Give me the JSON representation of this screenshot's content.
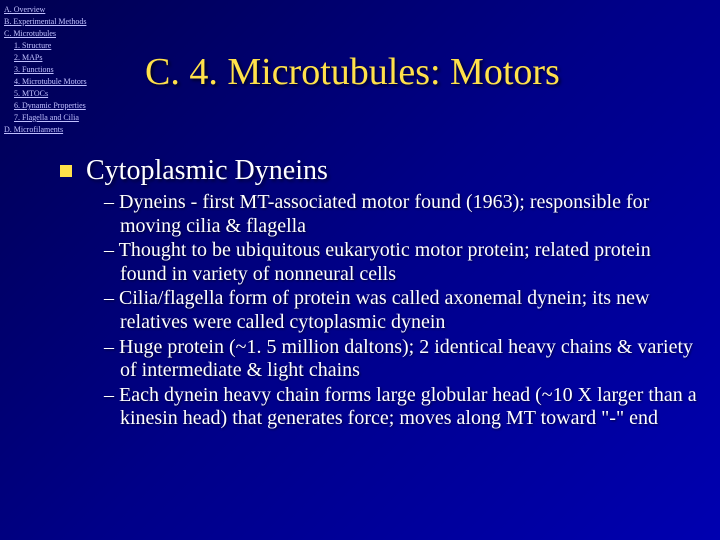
{
  "nav": {
    "items": [
      {
        "label": "A. Overview",
        "indent": 0
      },
      {
        "label": "B. Experimental Methods",
        "indent": 0
      },
      {
        "label": "C. Microtubules",
        "indent": 0
      },
      {
        "label": "1. Structure",
        "indent": 1
      },
      {
        "label": "2. MAPs",
        "indent": 1
      },
      {
        "label": "3. Functions",
        "indent": 1
      },
      {
        "label": "4. Microtubule Motors",
        "indent": 1
      },
      {
        "label": "5. MTOCs",
        "indent": 1
      },
      {
        "label": "6. Dynamic Properties",
        "indent": 1
      },
      {
        "label": "7. Flagella and Cilia",
        "indent": 1
      },
      {
        "label": "D. Microfilaments",
        "indent": 0
      }
    ]
  },
  "title": "C. 4. Microtubules: Motors",
  "main": {
    "heading": "Cytoplasmic Dyneins",
    "points": [
      "– Dyneins - first MT-associated motor found (1963); responsible for moving cilia & flagella",
      "– Thought to be ubiquitous eukaryotic motor protein; related protein found in variety of nonneural cells",
      "– Cilia/flagella form of protein was called axonemal dynein; its new relatives were called cytoplasmic dynein",
      "– Huge protein (~1. 5  million daltons); 2 identical heavy chains & variety of intermediate & light chains",
      "– Each dynein heavy chain forms large globular head (~10 X larger than a kinesin head) that generates force; moves along MT toward \"-\" end"
    ]
  }
}
